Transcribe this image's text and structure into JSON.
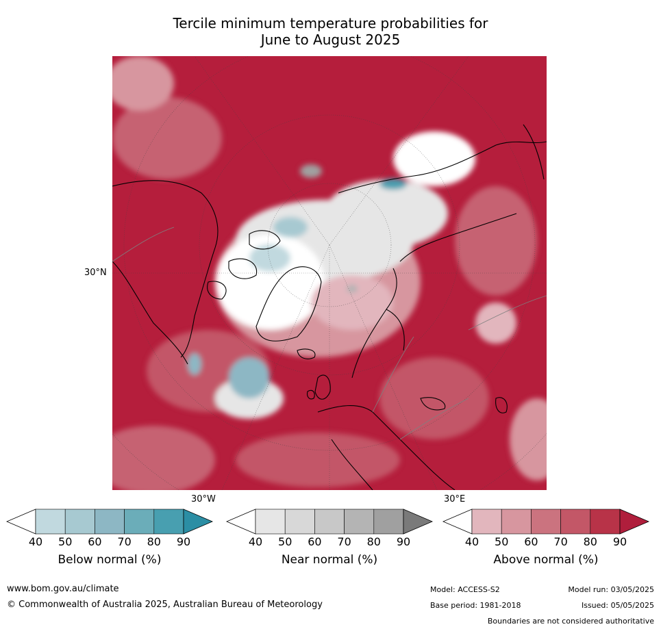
{
  "title": {
    "line1": "Tercile minimum temperature probabilities for",
    "line2": "June to August 2025"
  },
  "map": {
    "lat_label": "30°N",
    "lon_labels": [
      "30°W",
      "30°E"
    ],
    "colors": {
      "above_dominant": "#b51e3c",
      "ocean_base": "#c23a50",
      "near": "#e8e8e8",
      "below": "#7fb3c2",
      "coast": "#000000",
      "border": "#808080"
    }
  },
  "legends": [
    {
      "label": "Below normal (%)",
      "ticks": [
        "40",
        "50",
        "60",
        "70",
        "80",
        "90"
      ],
      "colors": [
        "#ffffff",
        "#c1d9df",
        "#a7c9d1",
        "#8db7c4",
        "#6badb9",
        "#489fb0",
        "#2b8ea4"
      ]
    },
    {
      "label": "Near normal (%)",
      "ticks": [
        "40",
        "50",
        "60",
        "70",
        "80",
        "90"
      ],
      "colors": [
        "#ffffff",
        "#e6e6e6",
        "#d8d8d8",
        "#c8c8c8",
        "#b4b4b4",
        "#a0a0a0",
        "#7a7a7a"
      ]
    },
    {
      "label": "Above normal (%)",
      "ticks": [
        "40",
        "50",
        "60",
        "70",
        "80",
        "90"
      ],
      "colors": [
        "#ffffff",
        "#e2b6bd",
        "#d7969f",
        "#cb737f",
        "#c35767",
        "#b83348",
        "#b01e3c"
      ]
    }
  ],
  "footer": {
    "url": "www.bom.gov.au/climate",
    "copyright": "© Commonwealth of Australia 2025, Australian Bureau of Meteorology",
    "model": "Model: ACCESS-S2",
    "base_period": "Base period: 1981-2018",
    "model_run": "Model run: 03/05/2025",
    "issued": "Issued: 05/05/2025",
    "disclaimer": "Boundaries are not considered authoritative"
  }
}
